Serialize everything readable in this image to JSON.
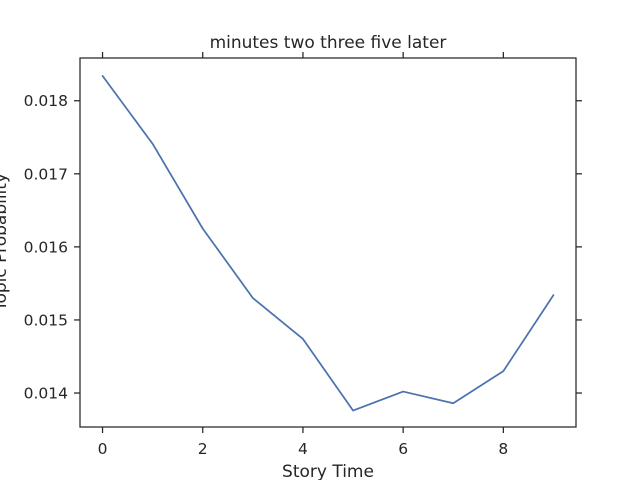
{
  "chart_data": {
    "type": "line",
    "title": "minutes two three five later",
    "xlabel": "Story Time",
    "ylabel": "Topic Probability",
    "xlim": [
      -0.45,
      9.45
    ],
    "ylim": [
      0.013535,
      0.018585
    ],
    "x_ticks": [
      0,
      2,
      4,
      6,
      8
    ],
    "x_tick_labels": [
      "0",
      "2",
      "4",
      "6",
      "8"
    ],
    "y_ticks": [
      0.014,
      0.015,
      0.016,
      0.017,
      0.018
    ],
    "y_tick_labels": [
      "0.014",
      "0.015",
      "0.016",
      "0.017",
      "0.018"
    ],
    "grid": false,
    "legend": false,
    "series": [
      {
        "color": "#4c72b0",
        "x": [
          0,
          1,
          2,
          3,
          4,
          5,
          6,
          7,
          8,
          9
        ],
        "values": [
          0.01834,
          0.01741,
          0.01625,
          0.0153,
          0.01474,
          0.01376,
          0.01402,
          0.01386,
          0.0143,
          0.01534
        ]
      }
    ]
  }
}
